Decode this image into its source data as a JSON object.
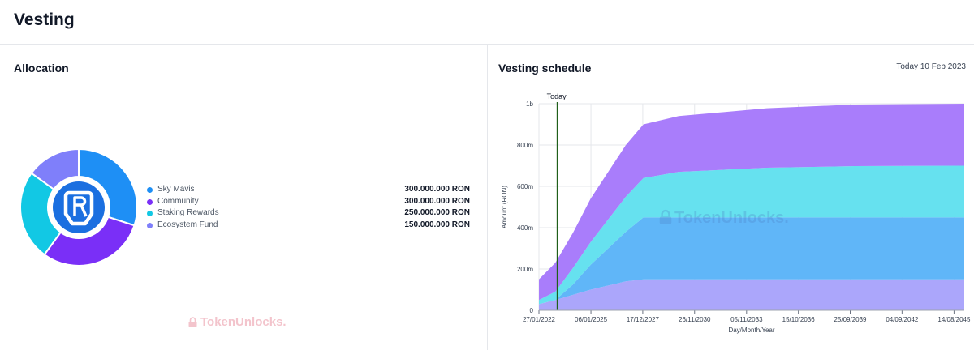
{
  "page_title": "Vesting",
  "allocation": {
    "title": "Allocation",
    "items": [
      {
        "name": "Sky Mavis",
        "value": "300.000.000 RON",
        "amount": 300000000,
        "color": "#1e8ff5"
      },
      {
        "name": "Community",
        "value": "300.000.000 RON",
        "amount": 300000000,
        "color": "#7a2ff7"
      },
      {
        "name": "Staking Rewards",
        "value": "250.000.000 RON",
        "amount": 250000000,
        "color": "#12c8e4"
      },
      {
        "name": "Ecosystem Fund",
        "value": "150.000.000 RON",
        "amount": 150000000,
        "color": "#7f7ffa"
      }
    ],
    "logo_icon": "ronin-logo-icon"
  },
  "watermark": "TokenUnlocks.",
  "vesting": {
    "title": "Vesting schedule",
    "today_text": "Today 10 Feb 2023"
  },
  "chart_data": {
    "type": "area",
    "stacked": true,
    "title": "Vesting schedule",
    "xlabel": "Day/Month/Year",
    "ylabel": "Amount (RON)",
    "ylim": [
      0,
      1000000000
    ],
    "xlim": [
      2022.07,
      2046.2
    ],
    "x_ticks": [
      {
        "label": "27/01/2022",
        "x": 2022.07
      },
      {
        "label": "06/01/2025",
        "x": 2025.02
      },
      {
        "label": "17/12/2027",
        "x": 2027.96
      },
      {
        "label": "26/11/2030",
        "x": 2030.9
      },
      {
        "label": "05/11/2033",
        "x": 2033.85
      },
      {
        "label": "15/10/2036",
        "x": 2036.79
      },
      {
        "label": "25/09/2039",
        "x": 2039.73
      },
      {
        "label": "04/09/2042",
        "x": 2042.67
      },
      {
        "label": "14/08/2045",
        "x": 2045.62
      }
    ],
    "y_ticks": [
      {
        "label": "0",
        "y": 0
      },
      {
        "label": "200m",
        "y": 200000000
      },
      {
        "label": "400m",
        "y": 400000000
      },
      {
        "label": "600m",
        "y": 600000000
      },
      {
        "label": "800m",
        "y": 800000000
      },
      {
        "label": "1b",
        "y": 1000000000
      }
    ],
    "today_marker": {
      "label": "Today",
      "x": 2023.11
    },
    "grid": true,
    "series": [
      {
        "name": "Ecosystem Fund",
        "color": "#aba6fb",
        "x": [
          2022.07,
          2023.0,
          2024.0,
          2025.0,
          2026.0,
          2027.0,
          2028.0,
          2030.0,
          2035.0,
          2040.0,
          2046.2
        ],
        "values": [
          30000000,
          50000000,
          75000000,
          100000000,
          120000000,
          140000000,
          150000000,
          150000000,
          150000000,
          150000000,
          150000000
        ]
      },
      {
        "name": "Sky Mavis",
        "color": "#60b6f8",
        "x": [
          2022.07,
          2023.0,
          2024.0,
          2025.0,
          2026.0,
          2027.0,
          2028.0,
          2030.0,
          2035.0,
          2040.0,
          2046.2
        ],
        "values": [
          0,
          0,
          50000000,
          120000000,
          180000000,
          240000000,
          300000000,
          300000000,
          300000000,
          300000000,
          300000000
        ]
      },
      {
        "name": "Staking Rewards",
        "color": "#66e1ef",
        "x": [
          2022.07,
          2023.0,
          2024.0,
          2025.0,
          2026.0,
          2027.0,
          2028.0,
          2030.0,
          2035.0,
          2040.0,
          2046.2
        ],
        "values": [
          20000000,
          40000000,
          80000000,
          110000000,
          140000000,
          170000000,
          190000000,
          220000000,
          240000000,
          248000000,
          250000000
        ]
      },
      {
        "name": "Community",
        "color": "#a97dfb",
        "x": [
          2022.07,
          2023.0,
          2024.0,
          2025.0,
          2026.0,
          2027.0,
          2028.0,
          2030.0,
          2035.0,
          2040.0,
          2046.2
        ],
        "values": [
          100000000,
          140000000,
          170000000,
          210000000,
          230000000,
          250000000,
          260000000,
          270000000,
          288000000,
          298000000,
          300000000
        ]
      }
    ]
  }
}
